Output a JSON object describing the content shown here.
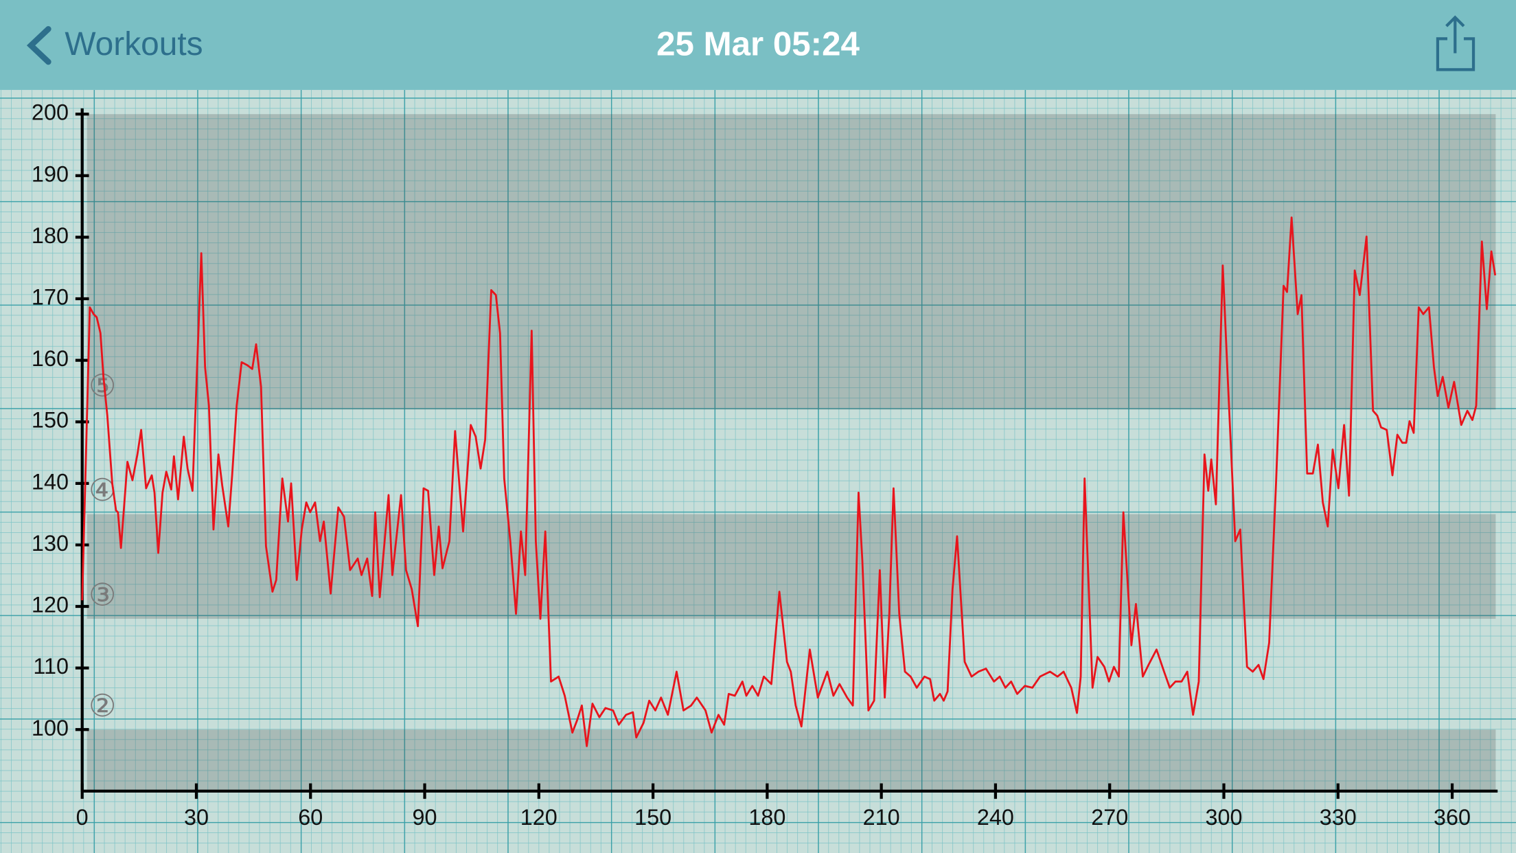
{
  "header": {
    "back": "Workouts",
    "title": "25 Mar 05:24"
  },
  "chart_data": {
    "type": "line",
    "color": "#e8141c",
    "xlim": [
      0,
      372
    ],
    "ylim": [
      90,
      200
    ],
    "xticks": [
      0,
      30,
      60,
      90,
      120,
      150,
      180,
      210,
      240,
      270,
      300,
      330,
      360
    ],
    "yticks": [
      100,
      110,
      120,
      130,
      140,
      150,
      160,
      170,
      180,
      190,
      200
    ],
    "zones": [
      {
        "from": 90,
        "to": 100,
        "shaded": true
      },
      {
        "label": "②",
        "from": 100,
        "to": 118,
        "shaded": false
      },
      {
        "label": "③",
        "from": 118,
        "to": 135,
        "shaded": true
      },
      {
        "label": "④",
        "from": 135,
        "to": 152,
        "shaded": false
      },
      {
        "label": "⑤",
        "from": 152,
        "to": 200,
        "shaded": true
      }
    ],
    "x": [
      0,
      2,
      3,
      3.8,
      4.8,
      5.6,
      6.6,
      7.9,
      8.9,
      9.4,
      10.2,
      10.9,
      11.9,
      13.2,
      14.5,
      15.5,
      16.8,
      18.3,
      19,
      20,
      21.1,
      22.1,
      23.4,
      24.1,
      25.2,
      26.7,
      27.7,
      29,
      30,
      31.3,
      32.3,
      33.3,
      34.5,
      35.8,
      36.8,
      38.4,
      39.4,
      40.6,
      41.9,
      43.4,
      44.7,
      45.7,
      47,
      48.3,
      50,
      51,
      52.6,
      54.1,
      54.9,
      56.4,
      57.7,
      58.9,
      59.9,
      61.2,
      62.5,
      63.5,
      65.3,
      67.3,
      68.8,
      70.4,
      72.4,
      73.4,
      74.9,
      76.2,
      77,
      78.2,
      80.5,
      81.5,
      83.8,
      85.1,
      86.6,
      88.2,
      89.7,
      90.9,
      92.5,
      93.7,
      94.7,
      96.5,
      98,
      100.1,
      102.1,
      103.4,
      104.7,
      105.9,
      107.5,
      108.7,
      109.8,
      110.9,
      112.5,
      114,
      115.3,
      116.4,
      118.1,
      119.2,
      120.4,
      121.7,
      123.2,
      125.2,
      126.8,
      128.8,
      130.1,
      131.3,
      132.6,
      134.1,
      135.9,
      137.5,
      139.5,
      141,
      142.9,
      144.7,
      145.6,
      147.5,
      149,
      150.6,
      152.1,
      153.9,
      156.2,
      158,
      160,
      161.5,
      163.8,
      165.4,
      167.2,
      168.7,
      169.9,
      171.5,
      173.5,
      174.5,
      176.1,
      177.6,
      179.1,
      181.1,
      183.2,
      185.2,
      186.2,
      187.5,
      189,
      191.2,
      193.3,
      195.8,
      197.4,
      199,
      201,
      202.5,
      204,
      205,
      206.6,
      208.1,
      209.6,
      210.9,
      212.1,
      213.2,
      214.7,
      216.2,
      217.7,
      219.3,
      221.3,
      222.8,
      223.9,
      225.4,
      226.4,
      227.4,
      228.7,
      229.9,
      231.9,
      233.7,
      235.5,
      237.5,
      239.6,
      241.1,
      242.6,
      244.1,
      245.7,
      247.7,
      249.7,
      251.7,
      254.3,
      256.3,
      257.9,
      259.9,
      261.4,
      262.4,
      263.4,
      265.5,
      266.8,
      268.6,
      269.8,
      271.1,
      272.4,
      273.6,
      275.7,
      276.9,
      278.7,
      280.2,
      282.3,
      284.3,
      285.8,
      287.3,
      288.9,
      290.4,
      291.9,
      293.4,
      294.9,
      295.9,
      296.7,
      297.9,
      299.7,
      301,
      303,
      304.3,
      306.1,
      307.6,
      309.1,
      310.4,
      311.9,
      313.7,
      315.7,
      316.6,
      317.8,
      319.4,
      320.4,
      321.9,
      323.4,
      324.7,
      326,
      327.3,
      328.6,
      330.1,
      331.6,
      332.9,
      334.4,
      335.7,
      337.5,
      339.2,
      340.3,
      341.3,
      342.8,
      344.3,
      345.6,
      346.9,
      347.9,
      348.8,
      349.9,
      351.2,
      352.4,
      353.9,
      355.2,
      356.2,
      357.5,
      359,
      360.5,
      362.4,
      364,
      365.3,
      366.3,
      367.8,
      369.1,
      370.3,
      371.3
    ],
    "values": [
      121,
      168.6,
      167.5,
      167,
      164.4,
      157.3,
      151,
      140,
      135.6,
      135.3,
      129.5,
      135.3,
      143.5,
      140.5,
      144.7,
      148.7,
      139.2,
      141.3,
      138.5,
      128.7,
      138.5,
      141.9,
      139,
      144.4,
      137.4,
      147.6,
      142.4,
      138.8,
      155.7,
      177.4,
      158.9,
      152.6,
      132.5,
      144.7,
      139.7,
      133,
      141.3,
      152.6,
      159.7,
      159.2,
      158.6,
      162.6,
      155.7,
      129.8,
      122.4,
      124.3,
      140.8,
      133.8,
      140,
      124.3,
      132.5,
      136.9,
      135.3,
      136.9,
      130.6,
      133.8,
      122.1,
      136.1,
      134.6,
      125.9,
      127.8,
      125.1,
      127.8,
      121.7,
      135.3,
      121.5,
      138.1,
      125.1,
      138.1,
      125.9,
      122.8,
      116.8,
      139.2,
      138.8,
      125.1,
      133,
      126.2,
      130.6,
      148.5,
      132.2,
      149.5,
      147.6,
      142.4,
      147.1,
      171.4,
      170.6,
      164.4,
      140.8,
      130.6,
      118.8,
      132.2,
      125.1,
      164.8,
      130.6,
      118,
      132.2,
      107.8,
      108.6,
      105.5,
      99.5,
      101.6,
      103.9,
      97.3,
      104.2,
      102,
      103.5,
      103.1,
      100.8,
      102.4,
      102.8,
      98.7,
      101.1,
      104.7,
      103.1,
      105.2,
      102.4,
      109.4,
      103.1,
      103.9,
      105.2,
      103.1,
      99.5,
      102.4,
      100.8,
      105.8,
      105.5,
      107.8,
      105.5,
      107.1,
      105.5,
      108.6,
      107.4,
      122.4,
      111,
      109.4,
      103.9,
      100.5,
      113,
      105.2,
      109.4,
      105.5,
      107.4,
      105.2,
      103.9,
      138.5,
      127.5,
      103.1,
      104.7,
      125.9,
      105.2,
      118.8,
      139.2,
      118.8,
      109.4,
      108.6,
      106.8,
      108.6,
      108.2,
      104.7,
      105.8,
      104.7,
      106.2,
      122.8,
      131.4,
      111,
      108.6,
      109.4,
      109.9,
      107.8,
      108.6,
      106.8,
      107.8,
      105.8,
      107.1,
      106.8,
      108.6,
      109.4,
      108.6,
      109.4,
      106.8,
      102.7,
      108.6,
      140.8,
      106.8,
      111.8,
      110.2,
      107.8,
      110.2,
      108.6,
      135.3,
      113.7,
      120.4,
      108.6,
      110.5,
      113,
      109.4,
      106.8,
      107.8,
      107.8,
      109.4,
      102.4,
      107.8,
      144.7,
      138.8,
      143.9,
      136.6,
      175.4,
      157.3,
      130.6,
      132.5,
      110.2,
      109.4,
      110.5,
      108.2,
      114.1,
      140,
      172.1,
      171.1,
      183.2,
      167.5,
      170.6,
      141.6,
      141.6,
      146.3,
      136.9,
      133,
      145.5,
      139.2,
      149.5,
      138,
      174.6,
      170.6,
      180.1,
      151.8,
      151,
      149.1,
      148.7,
      141.3,
      147.9,
      146.6,
      146.6,
      150.1,
      148.2,
      168.6,
      167.5,
      168.6,
      158.9,
      154.2,
      157.3,
      152.3,
      156.5,
      149.5,
      151.8,
      150.3,
      152.6,
      179.3,
      168.3,
      177.7,
      173.8
    ]
  }
}
